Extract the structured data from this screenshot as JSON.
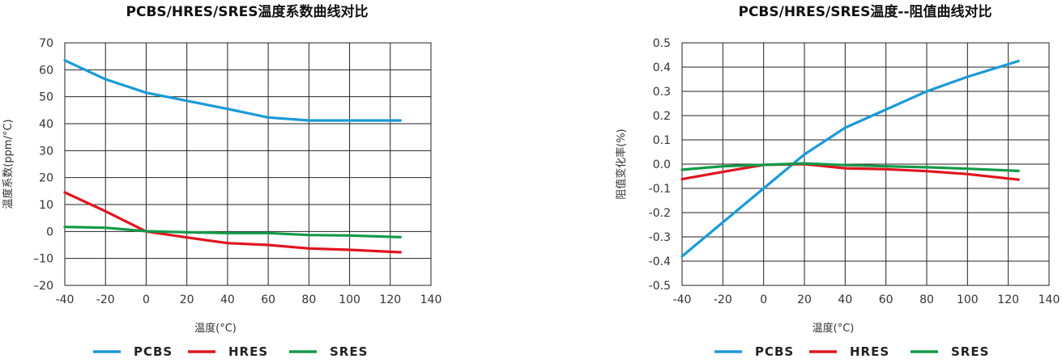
{
  "chart_data": [
    {
      "type": "line",
      "title": "PCBS/HRES/SRES温度系数曲线对比",
      "xlabel": "温度(°C)",
      "ylabel": "温度系数(ppm/°C)",
      "xlim": [
        -40,
        140
      ],
      "ylim": [
        -20,
        70
      ],
      "xticks": [
        -40,
        -20,
        0,
        20,
        40,
        60,
        80,
        100,
        120,
        140
      ],
      "yticks": [
        -20,
        -10,
        0,
        10,
        20,
        30,
        40,
        50,
        60,
        70
      ],
      "xtick_labels": [
        "-40",
        "-20",
        "0",
        "20",
        "40",
        "60",
        "80",
        "100",
        "120",
        "140"
      ],
      "ytick_labels": [
        "–20",
        "–10",
        "0",
        "10",
        "20",
        "30",
        "40",
        "50",
        "60",
        "70"
      ],
      "grid": true,
      "legend": "bottom",
      "series": [
        {
          "name": "PCBS",
          "color": "#1a9ad8",
          "x": [
            -40,
            -20,
            0,
            20,
            40,
            60,
            80,
            100,
            125
          ],
          "y": [
            63.5,
            56.5,
            51.5,
            48.5,
            45.5,
            42.3,
            41.2,
            41.2,
            41.2
          ]
        },
        {
          "name": "HRES",
          "color": "#e0141e",
          "x": [
            -40,
            -20,
            0,
            20,
            40,
            60,
            80,
            100,
            125
          ],
          "y": [
            14.5,
            7.5,
            0,
            -2.2,
            -4.3,
            -5.0,
            -6.3,
            -6.8,
            -7.7
          ]
        },
        {
          "name": "SRES",
          "color": "#139a48",
          "x": [
            -40,
            -20,
            0,
            20,
            40,
            60,
            80,
            100,
            125
          ],
          "y": [
            1.7,
            1.4,
            0.1,
            -0.3,
            -0.6,
            -0.6,
            -1.3,
            -1.5,
            -2.1
          ]
        }
      ]
    },
    {
      "type": "line",
      "title": "PCBS/HRES/SRES温度--阻值曲线对比",
      "xlabel": "温度(°C)",
      "ylabel": "阻值变化率(%)",
      "xlim": [
        -40,
        140
      ],
      "ylim": [
        -0.5,
        0.5
      ],
      "xticks": [
        -40,
        -20,
        0,
        20,
        40,
        60,
        80,
        100,
        120,
        140
      ],
      "yticks": [
        -0.5,
        -0.4,
        -0.3,
        -0.2,
        -0.1,
        0.0,
        0.1,
        0.2,
        0.3,
        0.4,
        0.5
      ],
      "xtick_labels": [
        "-40",
        "-20",
        "0",
        "20",
        "40",
        "60",
        "80",
        "100",
        "120",
        "140"
      ],
      "ytick_labels": [
        "-0.5",
        "-0.4",
        "-0.3",
        "-0.2",
        "-0.1",
        "0.0",
        "0.1",
        "0.2",
        "0.3",
        "0.4",
        "0.5"
      ],
      "grid": true,
      "legend": "bottom",
      "series": [
        {
          "name": "PCBS",
          "color": "#1a9ad8",
          "x": [
            -40,
            -20,
            0,
            20,
            40,
            60,
            80,
            100,
            125
          ],
          "y": [
            -0.38,
            -0.24,
            -0.1,
            0.04,
            0.15,
            0.225,
            0.3,
            0.36,
            0.425
          ]
        },
        {
          "name": "HRES",
          "color": "#e0141e",
          "x": [
            -40,
            -20,
            0,
            20,
            40,
            60,
            80,
            100,
            125
          ],
          "y": [
            -0.062,
            -0.032,
            -0.003,
            0.0,
            -0.017,
            -0.021,
            -0.029,
            -0.041,
            -0.064
          ]
        },
        {
          "name": "SRES",
          "color": "#139a48",
          "x": [
            -40,
            -20,
            0,
            20,
            40,
            60,
            80,
            100,
            125
          ],
          "y": [
            -0.023,
            -0.009,
            -0.003,
            0.003,
            -0.004,
            -0.009,
            -0.013,
            -0.019,
            -0.028
          ]
        }
      ]
    }
  ]
}
